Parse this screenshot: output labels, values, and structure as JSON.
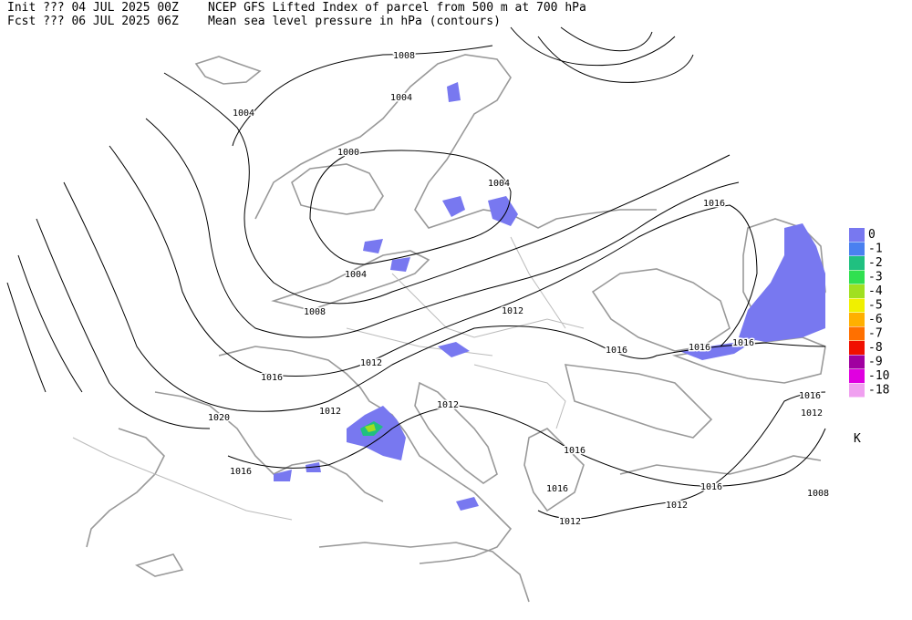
{
  "header": {
    "init": "Init  ??? 04 JUL 2025 00Z",
    "fcst": "Fcst ??? 06 JUL 2025 06Z",
    "title": "NCEP GFS Lifted Index of parcel from 500 m at 700 hPa",
    "subtitle": "Mean sea level pressure in hPa (contours)"
  },
  "contour_labels": [
    "1008",
    "1004",
    "1004",
    "1000",
    "1004",
    "1016",
    "1004",
    "1008",
    "1012",
    "1012",
    "1016",
    "1016",
    "1016",
    "1016",
    "1012",
    "1012",
    "1020",
    "1016",
    "1012",
    "1016",
    "1016",
    "1016",
    "1016",
    "1012",
    "1008",
    "1012"
  ],
  "legend": {
    "values": [
      0,
      -1,
      -2,
      -3,
      -4,
      -5,
      -6,
      -7,
      -8,
      -9,
      -10,
      -18
    ],
    "colors": [
      "#7878f0",
      "#4a80f0",
      "#20c080",
      "#30e050",
      "#a0e020",
      "#f0f000",
      "#ffb000",
      "#ff7000",
      "#f01000",
      "#a000a0",
      "#e000e0",
      "#f0a0f0"
    ],
    "unit": "K"
  }
}
